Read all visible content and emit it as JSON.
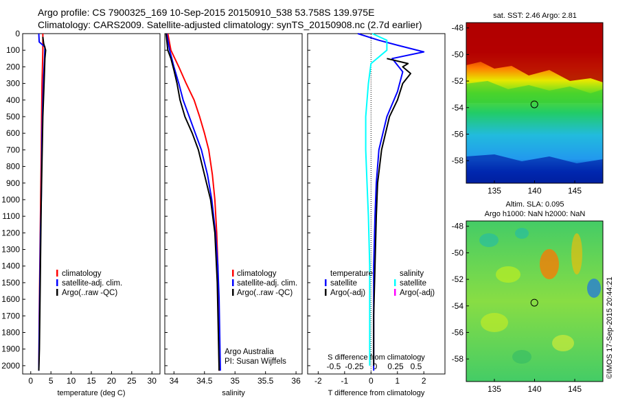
{
  "header": {
    "line1": "Argo profile: CS 7900325_169 10-Sep-2015 20150910_538 53.758S 139.975E",
    "line2": "Climatology: CARS2009. Satellite-adjusted climatology: synTS_20150908.nc (2.7d earlier)"
  },
  "colors": {
    "climatology": "#ff0000",
    "satellite": "#0000ff",
    "argo": "#000000",
    "satellite_salinity": "#00ffff",
    "argo_adj_salinity": "#ff00ff"
  },
  "chart_data": [
    {
      "type": "line",
      "panel": "temperature",
      "xlabel": "temperature (deg C)",
      "xticks": [
        "0",
        "5",
        "10",
        "15",
        "20",
        "25",
        "30"
      ],
      "yticks": [
        "0",
        "100",
        "200",
        "300",
        "400",
        "500",
        "600",
        "700",
        "800",
        "900",
        "1000",
        "1100",
        "1200",
        "1300",
        "1400",
        "1500",
        "1600",
        "1700",
        "1800",
        "1900",
        "2000"
      ],
      "xlim": [
        -2,
        32
      ],
      "ylim": [
        2050,
        0
      ],
      "legend": [
        "climatology",
        "satellite-adj. clim.",
        "Argo(..raw -QC)"
      ],
      "series": [
        {
          "name": "climatology",
          "color": "#ff0000",
          "x": [
            3.0,
            3.0,
            2.9,
            2.8,
            2.75,
            2.7,
            2.6,
            2.5,
            2.4,
            2.3,
            2.2,
            2.1,
            2.05,
            2.0
          ],
          "y": [
            0,
            100,
            200,
            300,
            400,
            500,
            700,
            900,
            1100,
            1300,
            1500,
            1700,
            1900,
            2000
          ]
        },
        {
          "name": "satellite-adj. clim.",
          "color": "#0000ff",
          "x": [
            2.0,
            2.1,
            3.5,
            3.4,
            3.2,
            3.0,
            2.8,
            2.7,
            2.6,
            2.4,
            2.3,
            2.2,
            2.05,
            2.0
          ],
          "y": [
            0,
            50,
            80,
            150,
            250,
            400,
            600,
            800,
            1000,
            1200,
            1400,
            1600,
            1900,
            2030
          ]
        },
        {
          "name": "Argo(..raw -QC)",
          "color": "#000000",
          "x": [
            3.0,
            3.2,
            3.7,
            3.5,
            3.3,
            3.0,
            2.85,
            2.6,
            2.45,
            2.3,
            2.15,
            2.0
          ],
          "y": [
            20,
            60,
            100,
            150,
            300,
            500,
            700,
            1000,
            1300,
            1600,
            1900,
            2030
          ]
        }
      ]
    },
    {
      "type": "line",
      "panel": "salinity",
      "xlabel": "salinity",
      "xticks": [
        "34",
        "34.5",
        "35",
        "35.5",
        "36"
      ],
      "xlim": [
        33.85,
        36.1
      ],
      "ylim": [
        2050,
        0
      ],
      "legend": [
        "climatology",
        "satellite-adj. clim.",
        "Argo(..raw -QC)"
      ],
      "annotation": [
        "Argo Australia",
        "PI: Susan Wijffels"
      ],
      "series": [
        {
          "name": "climatology",
          "color": "#ff0000",
          "x": [
            33.9,
            33.95,
            34.08,
            34.2,
            34.33,
            34.42,
            34.5,
            34.57,
            34.63,
            34.67,
            34.7,
            34.72,
            34.73,
            34.74
          ],
          "y": [
            0,
            100,
            200,
            300,
            400,
            500,
            600,
            700,
            850,
            1000,
            1200,
            1400,
            1600,
            2030
          ]
        },
        {
          "name": "satellite-adj. clim.",
          "color": "#0000ff",
          "x": [
            33.88,
            33.93,
            34.0,
            34.08,
            34.15,
            34.25,
            34.35,
            34.45,
            34.55,
            34.62,
            34.68,
            34.72,
            34.74,
            34.76
          ],
          "y": [
            0,
            100,
            200,
            300,
            400,
            500,
            600,
            700,
            850,
            1000,
            1200,
            1400,
            1600,
            2030
          ]
        },
        {
          "name": "Argo(..raw -QC)",
          "color": "#000000",
          "x": [
            33.87,
            33.9,
            33.95,
            34.0,
            34.05,
            34.1,
            34.18,
            34.3,
            34.4,
            34.5,
            34.6,
            34.67,
            34.71,
            34.74
          ],
          "y": [
            0,
            100,
            150,
            220,
            300,
            400,
            500,
            600,
            700,
            850,
            1000,
            1200,
            1500,
            2030
          ]
        }
      ]
    },
    {
      "type": "line",
      "panel": "difference",
      "xlabel": "T difference from climatology",
      "x2label": "S difference from climatology",
      "xticks": [
        "-2",
        "-1",
        "0",
        "1",
        "2"
      ],
      "x2ticks": [
        "-0.5",
        "-0.25",
        "0",
        "0.25",
        "0.5"
      ],
      "xlim": [
        -2.4,
        2.8
      ],
      "ylim": [
        2050,
        0
      ],
      "legend": [
        "temperature",
        "satellite",
        "Argo(-adj)",
        "salinity",
        "satellite",
        "Argo(-adj)"
      ],
      "series": [
        {
          "name": "satellite",
          "color": "#0000ff",
          "x": [
            -0.5,
            0.3,
            1.0,
            2.0,
            0.8,
            1.2,
            1.0,
            0.6,
            0.3,
            0.2,
            0.15,
            0.1,
            0.1,
            0.1
          ],
          "y": [
            0,
            40,
            70,
            110,
            150,
            230,
            350,
            500,
            700,
            900,
            1100,
            1400,
            1700,
            2030
          ]
        },
        {
          "name": "Argo(-adj)",
          "color": "#000000",
          "x": [
            0.6,
            1.4,
            1.2,
            1.5,
            1.2,
            1.0,
            0.7,
            0.4,
            0.25,
            0.2,
            0.15,
            0.1,
            0.1
          ],
          "y": [
            150,
            180,
            200,
            240,
            300,
            400,
            500,
            700,
            900,
            1100,
            1400,
            1700,
            2000
          ]
        },
        {
          "name": "satellite",
          "color": "#00ffff",
          "x": [
            0.05,
            0.6,
            0.6,
            0.0,
            -0.1,
            -0.2,
            -0.2,
            -0.15,
            -0.1,
            -0.05,
            -0.05,
            -0.05
          ],
          "y": [
            0,
            40,
            100,
            180,
            300,
            500,
            700,
            900,
            1100,
            1400,
            1700,
            2000
          ]
        }
      ]
    },
    {
      "type": "heatmap",
      "panel": "sst-map",
      "title": "sat. SST: 2.46 Argo: 2.81",
      "xticks": [
        "135",
        "140",
        "145"
      ],
      "yticks": [
        "-48",
        "-50",
        "-52",
        "-54",
        "-56",
        "-58"
      ],
      "xlim": [
        131.5,
        148.5
      ],
      "ylim": [
        -59.7,
        -47.6
      ],
      "marker": {
        "lon": 139.975,
        "lat": -53.758
      }
    },
    {
      "type": "heatmap",
      "panel": "sla-map",
      "title": "Altim. SLA: 0.095",
      "subtitle": "Argo h1000: NaN h2000: NaN",
      "xticks": [
        "135",
        "140",
        "145"
      ],
      "yticks": [
        "-48",
        "-50",
        "-52",
        "-54",
        "-56",
        "-58"
      ],
      "xlim": [
        131.5,
        148.5
      ],
      "ylim": [
        -59.7,
        -47.6
      ],
      "marker": {
        "lon": 139.975,
        "lat": -53.758
      }
    }
  ],
  "credit": "©IMOS 17-Sep-2015 20:44:21"
}
